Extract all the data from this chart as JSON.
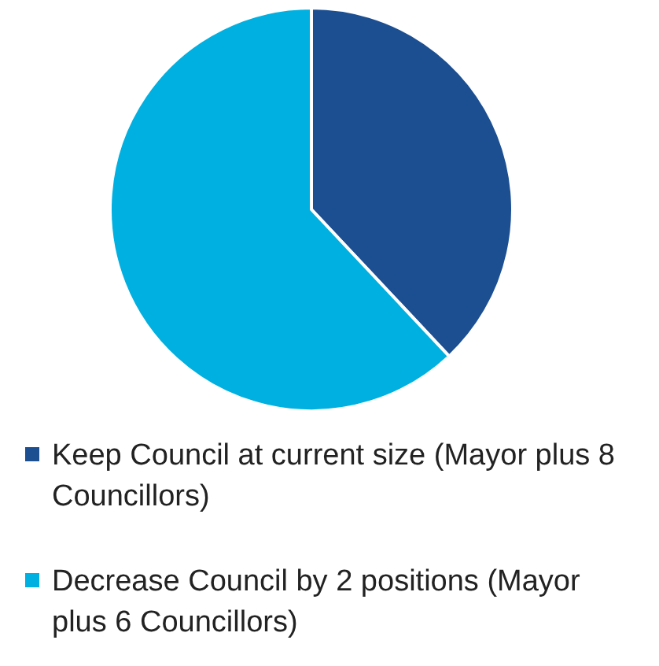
{
  "chart_data": {
    "type": "pie",
    "categories": [
      "Keep Council at current size (Mayor plus 8 Councillors)",
      "Decrease Council by 2 positions (Mayor plus 6 Councillors)"
    ],
    "values": [
      38,
      62
    ],
    "colors": [
      "#1c4f91",
      "#00b0e0"
    ],
    "legend": "bottom"
  }
}
